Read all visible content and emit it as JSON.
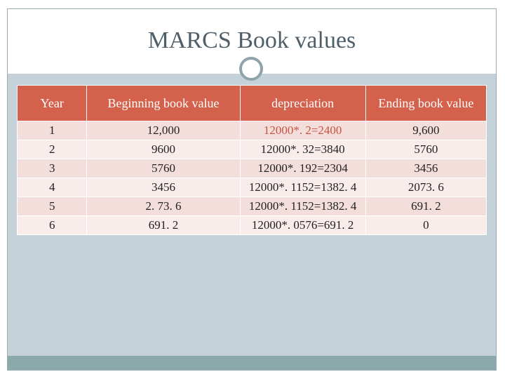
{
  "slide": {
    "title": "MARCS Book values"
  },
  "table": {
    "headers": [
      "Year",
      "Beginning book value",
      "depreciation",
      "Ending book value"
    ],
    "rows": [
      [
        "1",
        "12,000",
        "12000*. 2=2400",
        "9,600"
      ],
      [
        "2",
        "9600",
        "12000*. 32=3840",
        "5760"
      ],
      [
        "3",
        "5760",
        "12000*. 192=2304",
        "3456"
      ],
      [
        "4",
        "3456",
        "12000*. 1152=1382. 4",
        "2073. 6"
      ],
      [
        "5",
        "2. 73. 6",
        "12000*. 1152=1382. 4",
        "691. 2"
      ],
      [
        "6",
        "691. 2",
        "12000*. 0576=691. 2",
        "0"
      ]
    ]
  },
  "colors": {
    "header_bg": "#d4614b",
    "row_odd": "#f4dedb",
    "row_even": "#f9edeb",
    "slide_bg": "#c5d1d8",
    "footer_bar": "#8ba8ab"
  }
}
